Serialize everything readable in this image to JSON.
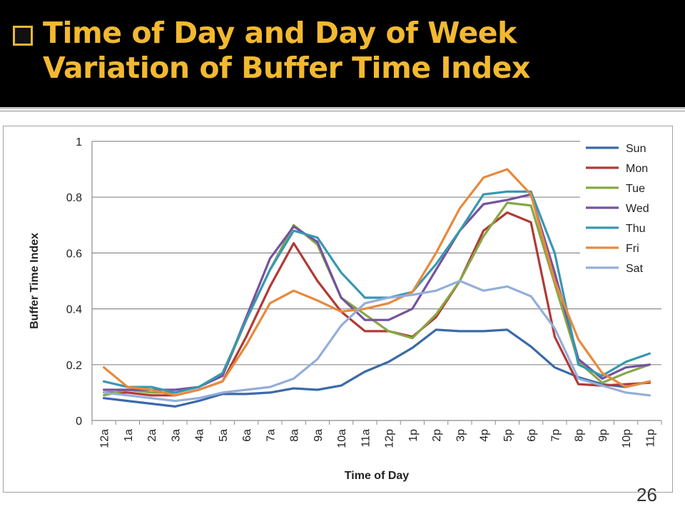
{
  "slide": {
    "title": "Time of Day and Day of Week Variation of Buffer Time Index",
    "page_number": "26"
  },
  "chart_data": {
    "type": "line",
    "xlabel": "Time of Day",
    "ylabel": "Buffer Time Index",
    "ylim": [
      0,
      1
    ],
    "yticks": [
      "0",
      "0.2",
      "0.4",
      "0.6",
      "0.8",
      "1"
    ],
    "grid": "horizontal",
    "legend_position": "top-right",
    "categories": [
      "12a",
      "1a",
      "2a",
      "3a",
      "4a",
      "5a",
      "6a",
      "7a",
      "8a",
      "9a",
      "10a",
      "11a",
      "12p",
      "1p",
      "2p",
      "3p",
      "4p",
      "5p",
      "6p",
      "7p",
      "8p",
      "9p",
      "10p",
      "11p"
    ],
    "series": [
      {
        "name": "Sun",
        "color": "#3a6aa8",
        "values": [
          0.08,
          0.07,
          0.06,
          0.05,
          0.07,
          0.095,
          0.095,
          0.1,
          0.115,
          0.11,
          0.125,
          0.175,
          0.21,
          0.26,
          0.325,
          0.32,
          0.32,
          0.325,
          0.265,
          0.19,
          0.155,
          0.13,
          0.12,
          0.14
        ]
      },
      {
        "name": "Mon",
        "color": "#b03a36",
        "values": [
          0.1,
          0.1,
          0.09,
          0.09,
          0.11,
          0.14,
          0.3,
          0.48,
          0.635,
          0.5,
          0.39,
          0.32,
          0.32,
          0.3,
          0.37,
          0.5,
          0.68,
          0.745,
          0.71,
          0.3,
          0.13,
          0.125,
          0.13,
          0.135
        ]
      },
      {
        "name": "Tue",
        "color": "#86a845",
        "values": [
          0.09,
          0.11,
          0.1,
          0.1,
          0.12,
          0.16,
          0.36,
          0.54,
          0.7,
          0.63,
          0.44,
          0.38,
          0.32,
          0.295,
          0.38,
          0.5,
          0.66,
          0.78,
          0.77,
          0.49,
          0.21,
          0.135,
          0.17,
          0.2
        ]
      },
      {
        "name": "Wed",
        "color": "#7552a0",
        "values": [
          0.11,
          0.11,
          0.11,
          0.11,
          0.12,
          0.16,
          0.37,
          0.58,
          0.695,
          0.64,
          0.44,
          0.36,
          0.36,
          0.4,
          0.54,
          0.68,
          0.775,
          0.79,
          0.81,
          0.53,
          0.22,
          0.15,
          0.19,
          0.2
        ]
      },
      {
        "name": "Thu",
        "color": "#3798b0",
        "values": [
          0.14,
          0.12,
          0.12,
          0.1,
          0.12,
          0.17,
          0.36,
          0.54,
          0.68,
          0.655,
          0.53,
          0.44,
          0.44,
          0.46,
          0.56,
          0.68,
          0.81,
          0.82,
          0.82,
          0.6,
          0.2,
          0.16,
          0.21,
          0.24
        ]
      },
      {
        "name": "Fri",
        "color": "#e68a3c",
        "values": [
          0.19,
          0.12,
          0.11,
          0.09,
          0.11,
          0.14,
          0.27,
          0.42,
          0.465,
          0.43,
          0.39,
          0.4,
          0.42,
          0.46,
          0.6,
          0.76,
          0.87,
          0.9,
          0.81,
          0.5,
          0.29,
          0.17,
          0.12,
          0.14
        ]
      },
      {
        "name": "Sat",
        "color": "#93aedb",
        "values": [
          0.1,
          0.09,
          0.08,
          0.07,
          0.08,
          0.1,
          0.11,
          0.12,
          0.15,
          0.22,
          0.34,
          0.42,
          0.44,
          0.45,
          0.465,
          0.5,
          0.465,
          0.48,
          0.445,
          0.33,
          0.15,
          0.125,
          0.1,
          0.09
        ]
      }
    ]
  }
}
